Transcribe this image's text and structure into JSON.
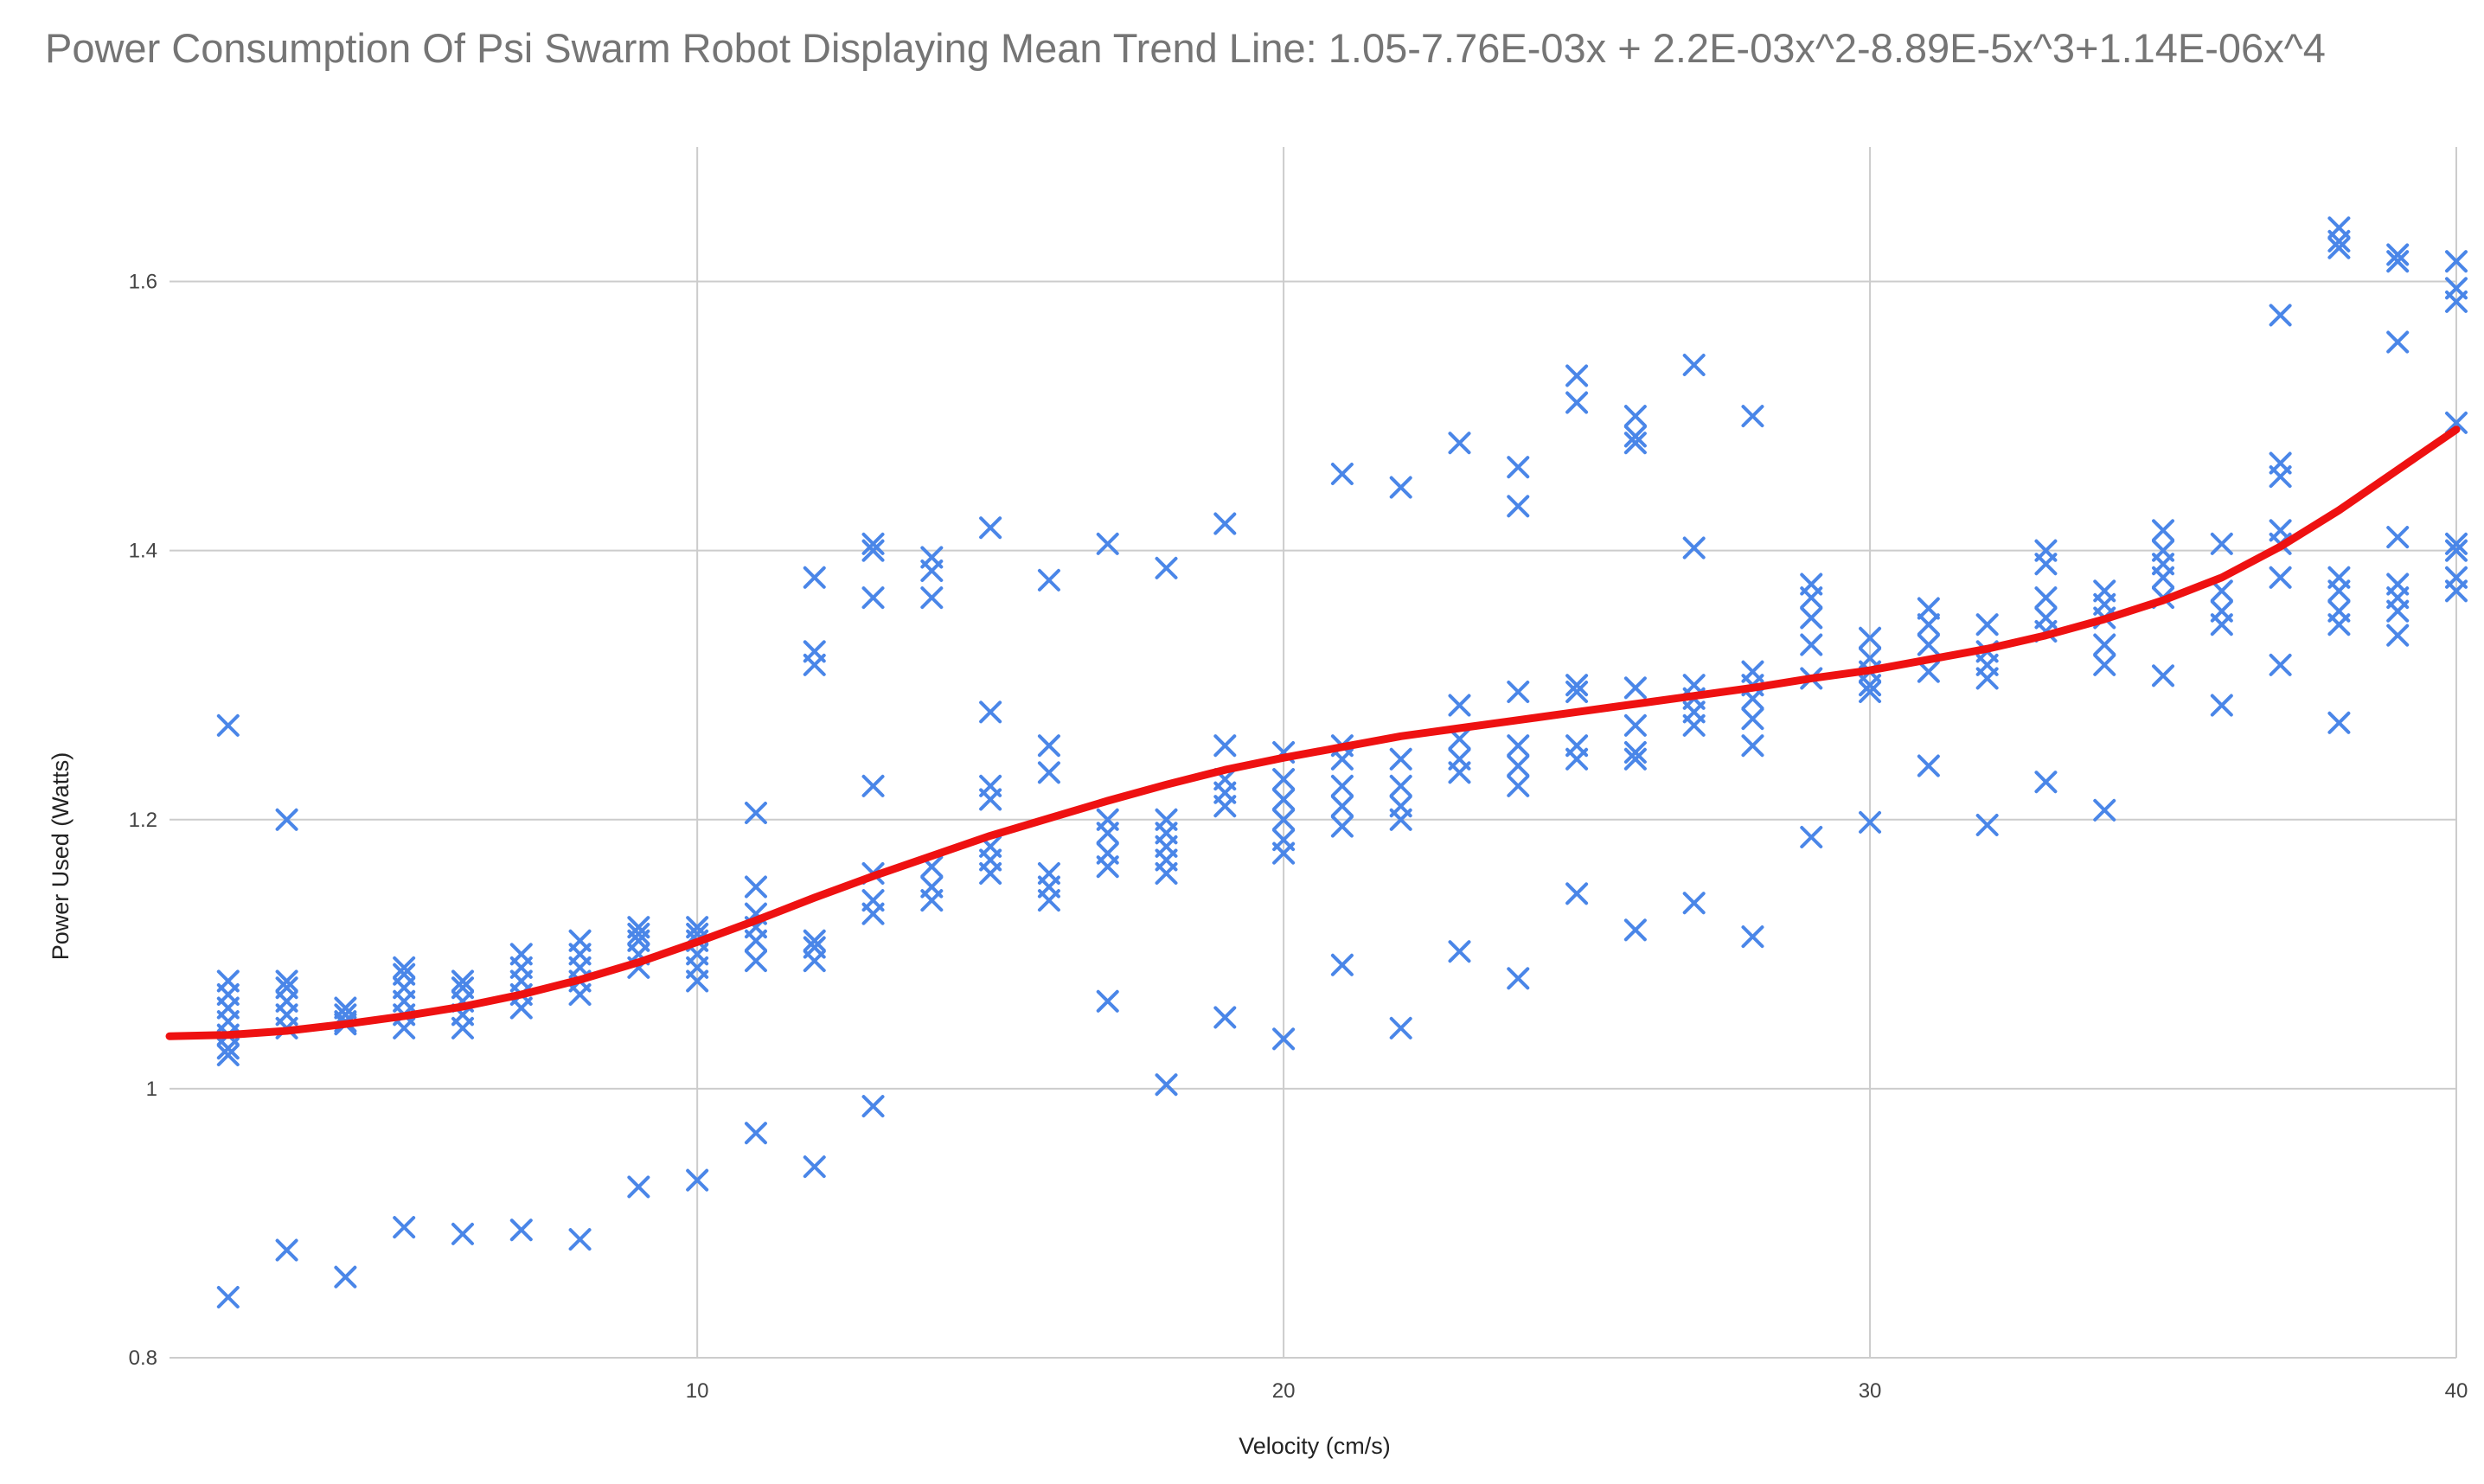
{
  "chart_data": {
    "type": "scatter",
    "title": "Power Consumption Of Psi Swarm Robot Displaying Mean Trend Line: 1.05-7.76E-03x + 2.2E-03x^2-8.89E-5x^3+1.14E-06x^4",
    "xlabel": "Velocity (cm/s)",
    "ylabel": "Power Used (Watts)",
    "xlim": [
      1,
      40
    ],
    "ylim": [
      0.8,
      1.7
    ],
    "xticks": [
      10,
      20,
      30,
      40
    ],
    "xtick_labels": [
      "10",
      "20",
      "30",
      "40"
    ],
    "yticks": [
      0.8,
      1.0,
      1.2,
      1.4,
      1.6
    ],
    "ytick_labels": [
      "0.8",
      "1",
      "1.2",
      "1.4",
      "1.6"
    ],
    "grid": true,
    "colors": {
      "points": "#4a86e8",
      "trend": "#ee1111",
      "grid": "#cccccc",
      "title": "#757575"
    },
    "series": [
      {
        "name": "Power Used",
        "marker": "x",
        "points": [
          [
            2,
            1.27
          ],
          [
            2,
            1.08
          ],
          [
            2,
            1.07
          ],
          [
            2,
            1.06
          ],
          [
            2,
            1.05
          ],
          [
            2,
            1.04
          ],
          [
            2,
            1.03
          ],
          [
            2,
            1.025
          ],
          [
            2,
            0.845
          ],
          [
            3,
            1.2
          ],
          [
            3,
            1.08
          ],
          [
            3,
            1.075
          ],
          [
            3,
            1.065
          ],
          [
            3,
            1.055
          ],
          [
            3,
            1.045
          ],
          [
            3,
            0.88
          ],
          [
            4,
            1.06
          ],
          [
            4,
            1.055
          ],
          [
            4,
            1.05
          ],
          [
            4,
            1.048
          ],
          [
            4,
            0.86
          ],
          [
            5,
            1.09
          ],
          [
            5,
            1.085
          ],
          [
            5,
            1.075
          ],
          [
            5,
            1.065
          ],
          [
            5,
            1.055
          ],
          [
            5,
            1.045
          ],
          [
            5,
            0.897
          ],
          [
            6,
            1.08
          ],
          [
            6,
            1.075
          ],
          [
            6,
            1.065
          ],
          [
            6,
            1.055
          ],
          [
            6,
            1.045
          ],
          [
            6,
            0.892
          ],
          [
            7,
            1.1
          ],
          [
            7,
            1.09
          ],
          [
            7,
            1.08
          ],
          [
            7,
            1.07
          ],
          [
            7,
            1.06
          ],
          [
            7,
            0.895
          ],
          [
            8,
            1.11
          ],
          [
            8,
            1.1
          ],
          [
            8,
            1.09
          ],
          [
            8,
            1.08
          ],
          [
            8,
            1.07
          ],
          [
            8,
            0.888
          ],
          [
            9,
            1.12
          ],
          [
            9,
            1.115
          ],
          [
            9,
            1.11
          ],
          [
            9,
            1.1
          ],
          [
            9,
            1.09
          ],
          [
            9,
            0.927
          ],
          [
            10,
            1.12
          ],
          [
            10,
            1.115
          ],
          [
            10,
            1.11
          ],
          [
            10,
            1.1
          ],
          [
            10,
            1.09
          ],
          [
            10,
            1.08
          ],
          [
            10,
            0.932
          ],
          [
            11,
            1.205
          ],
          [
            11,
            1.15
          ],
          [
            11,
            1.13
          ],
          [
            11,
            1.12
          ],
          [
            11,
            1.11
          ],
          [
            11,
            1.095
          ],
          [
            11,
            0.967
          ],
          [
            12,
            1.38
          ],
          [
            12,
            1.325
          ],
          [
            12,
            1.315
          ],
          [
            12,
            1.11
          ],
          [
            12,
            1.105
          ],
          [
            12,
            1.095
          ],
          [
            12,
            0.942
          ],
          [
            13,
            1.405
          ],
          [
            13,
            1.4
          ],
          [
            13,
            1.365
          ],
          [
            13,
            1.225
          ],
          [
            13,
            1.16
          ],
          [
            13,
            1.14
          ],
          [
            13,
            1.13
          ],
          [
            13,
            0.987
          ],
          [
            14,
            1.395
          ],
          [
            14,
            1.385
          ],
          [
            14,
            1.365
          ],
          [
            14,
            1.165
          ],
          [
            14,
            1.15
          ],
          [
            14,
            1.14
          ],
          [
            15,
            1.417
          ],
          [
            15,
            1.28
          ],
          [
            15,
            1.225
          ],
          [
            15,
            1.215
          ],
          [
            15,
            1.18
          ],
          [
            15,
            1.17
          ],
          [
            15,
            1.16
          ],
          [
            16,
            1.378
          ],
          [
            16,
            1.255
          ],
          [
            16,
            1.235
          ],
          [
            16,
            1.16
          ],
          [
            16,
            1.15
          ],
          [
            16,
            1.14
          ],
          [
            17,
            1.405
          ],
          [
            17,
            1.2
          ],
          [
            17,
            1.19
          ],
          [
            17,
            1.175
          ],
          [
            17,
            1.165
          ],
          [
            17,
            1.065
          ],
          [
            18,
            1.387
          ],
          [
            18,
            1.2
          ],
          [
            18,
            1.19
          ],
          [
            18,
            1.18
          ],
          [
            18,
            1.17
          ],
          [
            18,
            1.16
          ],
          [
            18,
            1.003
          ],
          [
            19,
            1.42
          ],
          [
            19,
            1.255
          ],
          [
            19,
            1.23
          ],
          [
            19,
            1.22
          ],
          [
            19,
            1.21
          ],
          [
            19,
            1.053
          ],
          [
            20,
            1.25
          ],
          [
            20,
            1.23
          ],
          [
            20,
            1.215
          ],
          [
            20,
            1.2
          ],
          [
            20,
            1.185
          ],
          [
            20,
            1.175
          ],
          [
            20,
            1.037
          ],
          [
            21,
            1.457
          ],
          [
            21,
            1.255
          ],
          [
            21,
            1.245
          ],
          [
            21,
            1.225
          ],
          [
            21,
            1.21
          ],
          [
            21,
            1.195
          ],
          [
            21,
            1.092
          ],
          [
            22,
            1.447
          ],
          [
            22,
            1.245
          ],
          [
            22,
            1.225
          ],
          [
            22,
            1.21
          ],
          [
            22,
            1.2
          ],
          [
            22,
            1.045
          ],
          [
            23,
            1.48
          ],
          [
            23,
            1.285
          ],
          [
            23,
            1.26
          ],
          [
            23,
            1.245
          ],
          [
            23,
            1.235
          ],
          [
            23,
            1.102
          ],
          [
            24,
            1.462
          ],
          [
            24,
            1.433
          ],
          [
            24,
            1.295
          ],
          [
            24,
            1.255
          ],
          [
            24,
            1.24
          ],
          [
            24,
            1.225
          ],
          [
            24,
            1.082
          ],
          [
            25,
            1.53
          ],
          [
            25,
            1.51
          ],
          [
            25,
            1.3
          ],
          [
            25,
            1.295
          ],
          [
            25,
            1.255
          ],
          [
            25,
            1.245
          ],
          [
            25,
            1.145
          ],
          [
            26,
            1.5
          ],
          [
            26,
            1.485
          ],
          [
            26,
            1.48
          ],
          [
            26,
            1.298
          ],
          [
            26,
            1.27
          ],
          [
            26,
            1.25
          ],
          [
            26,
            1.245
          ],
          [
            26,
            1.118
          ],
          [
            27,
            1.538
          ],
          [
            27,
            1.402
          ],
          [
            27,
            1.3
          ],
          [
            27,
            1.29
          ],
          [
            27,
            1.28
          ],
          [
            27,
            1.27
          ],
          [
            27,
            1.138
          ],
          [
            28,
            1.5
          ],
          [
            28,
            1.31
          ],
          [
            28,
            1.3
          ],
          [
            28,
            1.29
          ],
          [
            28,
            1.275
          ],
          [
            28,
            1.255
          ],
          [
            28,
            1.113
          ],
          [
            29,
            1.375
          ],
          [
            29,
            1.365
          ],
          [
            29,
            1.35
          ],
          [
            29,
            1.33
          ],
          [
            29,
            1.305
          ],
          [
            29,
            1.187
          ],
          [
            30,
            1.335
          ],
          [
            30,
            1.32
          ],
          [
            30,
            1.31
          ],
          [
            30,
            1.3
          ],
          [
            30,
            1.295
          ],
          [
            30,
            1.198
          ],
          [
            31,
            1.357
          ],
          [
            31,
            1.345
          ],
          [
            31,
            1.33
          ],
          [
            31,
            1.31
          ],
          [
            31,
            1.24
          ],
          [
            32,
            1.345
          ],
          [
            32,
            1.325
          ],
          [
            32,
            1.315
          ],
          [
            32,
            1.305
          ],
          [
            32,
            1.196
          ],
          [
            33,
            1.4
          ],
          [
            33,
            1.39
          ],
          [
            33,
            1.365
          ],
          [
            33,
            1.35
          ],
          [
            33,
            1.34
          ],
          [
            33,
            1.228
          ],
          [
            34,
            1.37
          ],
          [
            34,
            1.36
          ],
          [
            34,
            1.35
          ],
          [
            34,
            1.33
          ],
          [
            34,
            1.315
          ],
          [
            34,
            1.207
          ],
          [
            35,
            1.415
          ],
          [
            35,
            1.4
          ],
          [
            35,
            1.39
          ],
          [
            35,
            1.38
          ],
          [
            35,
            1.365
          ],
          [
            35,
            1.307
          ],
          [
            36,
            1.405
          ],
          [
            36,
            1.37
          ],
          [
            36,
            1.355
          ],
          [
            36,
            1.345
          ],
          [
            36,
            1.285
          ],
          [
            37,
            1.575
          ],
          [
            37,
            1.465
          ],
          [
            37,
            1.455
          ],
          [
            37,
            1.415
          ],
          [
            37,
            1.405
          ],
          [
            37,
            1.38
          ],
          [
            37,
            1.315
          ],
          [
            38,
            1.64
          ],
          [
            38,
            1.63
          ],
          [
            38,
            1.625
          ],
          [
            38,
            1.38
          ],
          [
            38,
            1.37
          ],
          [
            38,
            1.355
          ],
          [
            38,
            1.345
          ],
          [
            38,
            1.272
          ],
          [
            39,
            1.62
          ],
          [
            39,
            1.615
          ],
          [
            39,
            1.555
          ],
          [
            39,
            1.41
          ],
          [
            39,
            1.375
          ],
          [
            39,
            1.365
          ],
          [
            39,
            1.355
          ],
          [
            39,
            1.337
          ],
          [
            40,
            1.615
          ],
          [
            40,
            1.595
          ],
          [
            40,
            1.585
          ],
          [
            40,
            1.495
          ],
          [
            40,
            1.405
          ],
          [
            40,
            1.4
          ],
          [
            40,
            1.38
          ],
          [
            40,
            1.37
          ]
        ]
      }
    ],
    "trend_line": {
      "name": "Mean Trend Line",
      "points": [
        [
          1,
          1.039
        ],
        [
          2,
          1.04
        ],
        [
          3,
          1.043
        ],
        [
          4,
          1.048
        ],
        [
          5,
          1.054
        ],
        [
          6,
          1.061
        ],
        [
          7,
          1.07
        ],
        [
          8,
          1.081
        ],
        [
          9,
          1.094
        ],
        [
          10,
          1.109
        ],
        [
          11,
          1.125
        ],
        [
          12,
          1.142
        ],
        [
          13,
          1.158
        ],
        [
          14,
          1.173
        ],
        [
          15,
          1.188
        ],
        [
          16,
          1.201
        ],
        [
          17,
          1.214
        ],
        [
          18,
          1.226
        ],
        [
          19,
          1.237
        ],
        [
          20,
          1.246
        ],
        [
          21,
          1.254
        ],
        [
          22,
          1.262
        ],
        [
          23,
          1.268
        ],
        [
          24,
          1.274
        ],
        [
          25,
          1.28
        ],
        [
          26,
          1.286
        ],
        [
          27,
          1.292
        ],
        [
          28,
          1.298
        ],
        [
          29,
          1.305
        ],
        [
          30,
          1.311
        ],
        [
          31,
          1.319
        ],
        [
          32,
          1.327
        ],
        [
          33,
          1.337
        ],
        [
          34,
          1.349
        ],
        [
          35,
          1.363
        ],
        [
          36,
          1.38
        ],
        [
          37,
          1.403
        ],
        [
          38,
          1.43
        ],
        [
          39,
          1.46
        ],
        [
          40,
          1.49
        ]
      ]
    }
  }
}
